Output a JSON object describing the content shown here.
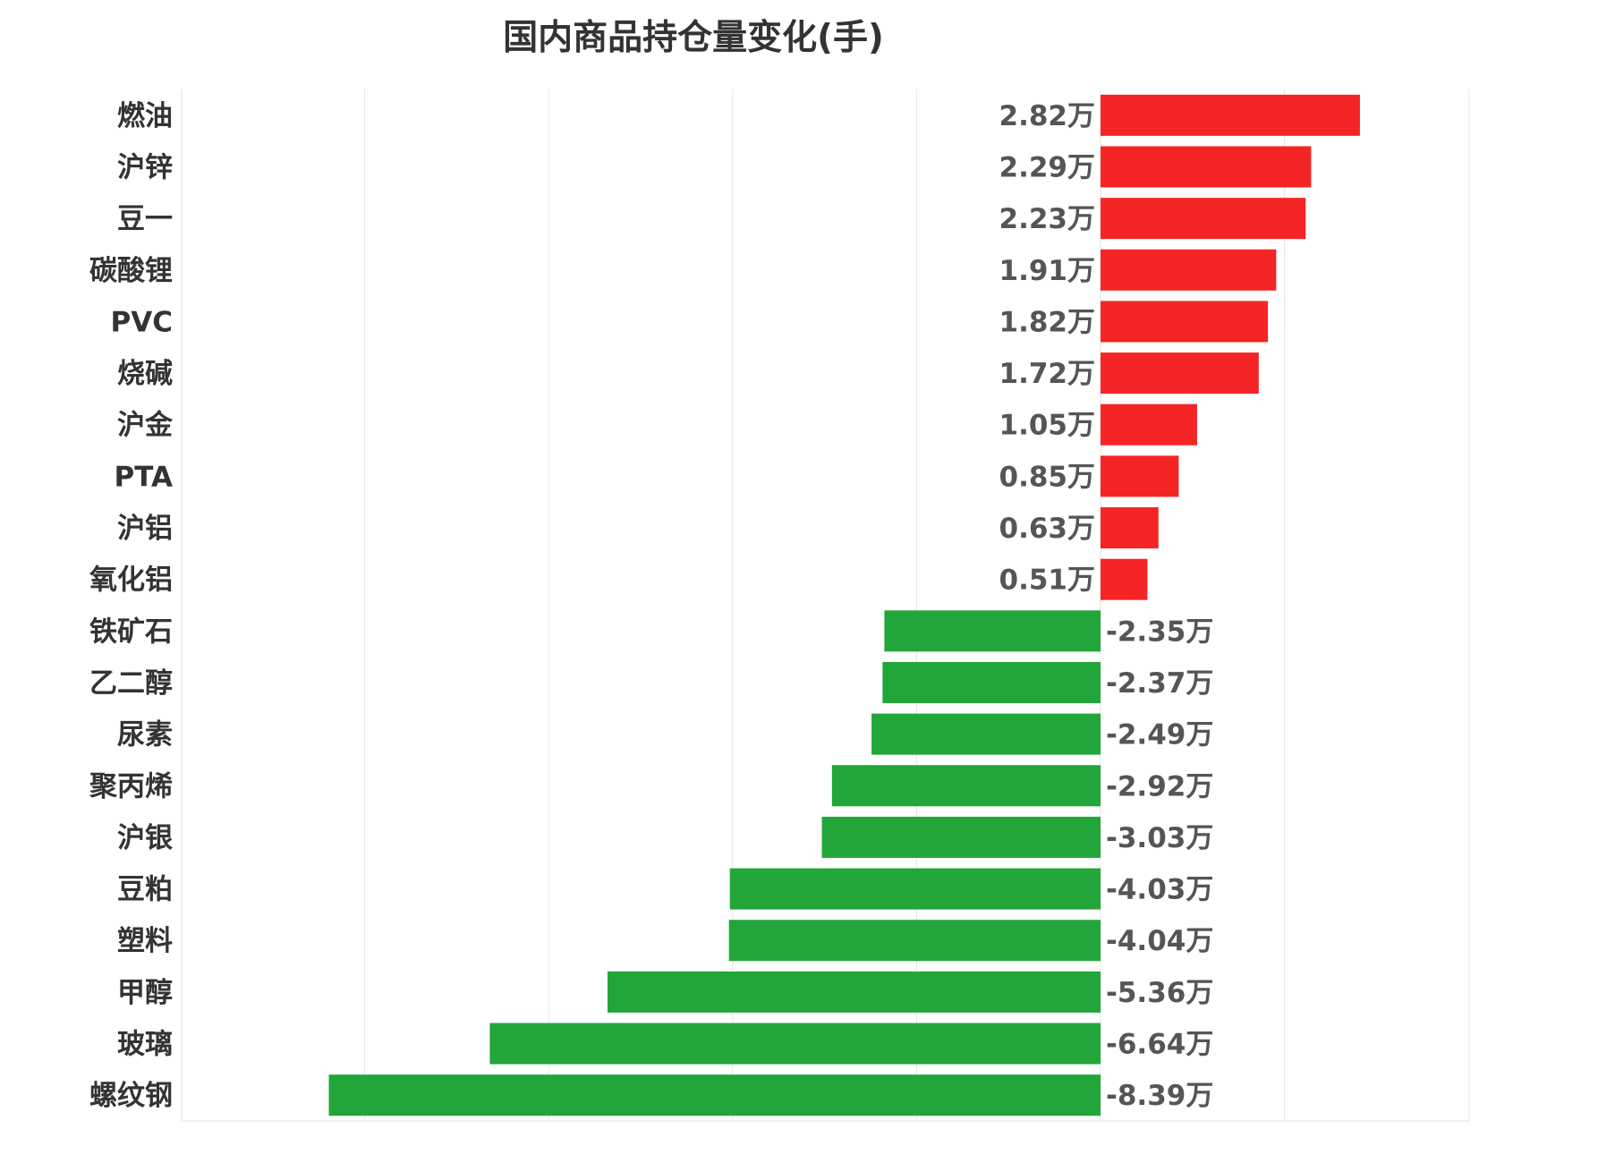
{
  "chart_data": {
    "type": "bar",
    "orientation": "horizontal",
    "title": "国内商品持仓量变化(手)",
    "xlabel": "",
    "ylabel": "",
    "unit_suffix": "万",
    "xlim": [
      -10,
      2
    ],
    "grid": true,
    "legend": "none",
    "categories": [
      "燃油",
      "沪锌",
      "豆一",
      "碳酸锂",
      "PVC",
      "烧碱",
      "沪金",
      "PTA",
      "沪铝",
      "氧化铝",
      "铁矿石",
      "乙二醇",
      "尿素",
      "聚丙烯",
      "沪银",
      "豆粕",
      "塑料",
      "甲醇",
      "玻璃",
      "螺纹钢"
    ],
    "values": [
      2.82,
      2.29,
      2.23,
      1.91,
      1.82,
      1.72,
      1.05,
      0.85,
      0.63,
      0.51,
      -2.35,
      -2.37,
      -2.49,
      -2.92,
      -3.03,
      -4.03,
      -4.04,
      -5.36,
      -6.64,
      -8.39
    ],
    "value_labels": [
      "2.82万",
      "2.29万",
      "2.23万",
      "1.91万",
      "1.82万",
      "1.72万",
      "1.05万",
      "0.85万",
      "0.63万",
      "0.51万",
      "-2.35万",
      "-2.37万",
      "-2.49万",
      "-2.92万",
      "-3.03万",
      "-4.03万",
      "-4.04万",
      "-5.36万",
      "-6.64万",
      "-8.39万"
    ],
    "colors": {
      "positive": "#f52525",
      "negative": "#22a63a"
    }
  }
}
